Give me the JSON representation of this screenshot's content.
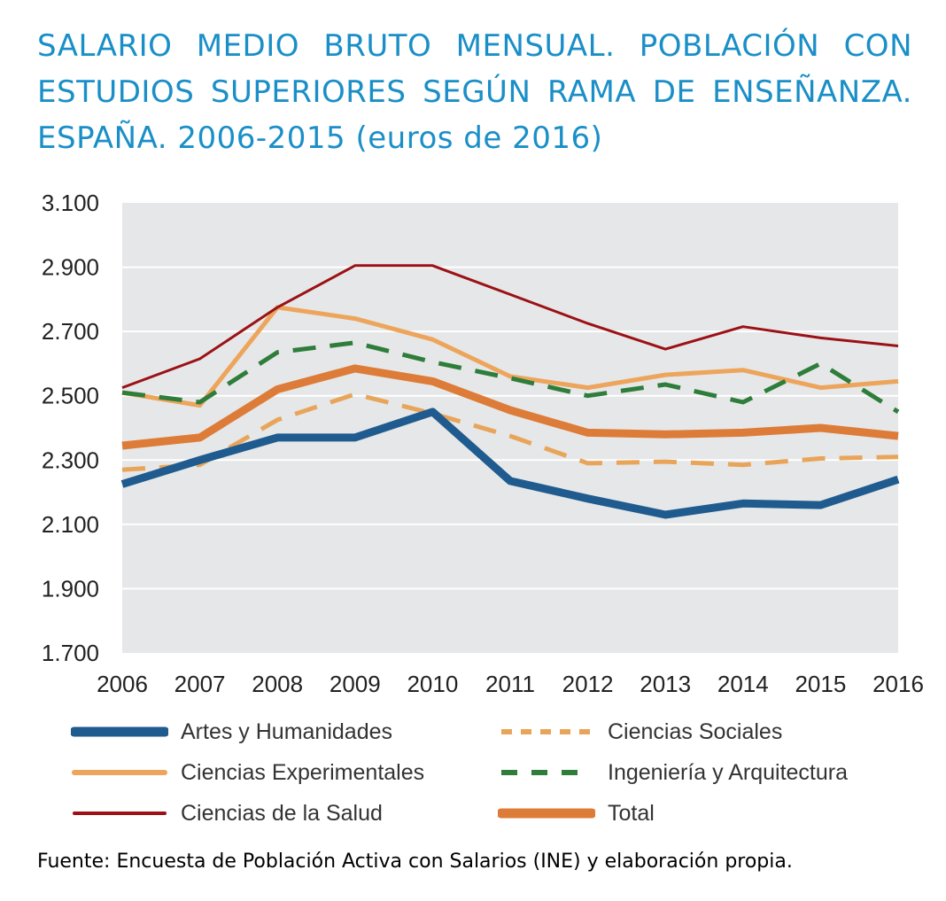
{
  "title": "SALARIO MEDIO BRUTO MENSUAL. POBLACIÓN CON ESTUDIOS SUPERIORES SEGÚN RAMA DE ENSEÑANZA. ESPAÑA. 2006-2015 (euros de 2016)",
  "source": "Fuente: Encuesta de Población Activa con Salarios (INE) y elaboración propia.",
  "chart_data": {
    "type": "line",
    "title": "SALARIO MEDIO BRUTO MENSUAL. POBLACIÓN CON ESTUDIOS SUPERIORES SEGÚN RAMA DE ENSEÑANZA. ESPAÑA. 2006-2015 (euros de 2016)",
    "x": [
      "2006",
      "2007",
      "2008",
      "2009",
      "2010",
      "2011",
      "2012",
      "2013",
      "2014",
      "2015",
      "2016"
    ],
    "ylim": [
      1700,
      3100
    ],
    "yticks": [
      "1.700",
      "1.900",
      "2.100",
      "2.300",
      "2.500",
      "2.700",
      "2.900",
      "3.100"
    ],
    "ytick_values": [
      1700,
      1900,
      2100,
      2300,
      2500,
      2700,
      2900,
      3100
    ],
    "grid": true,
    "legend_position": "bottom",
    "plot_background": "#e6e7e8",
    "series": [
      {
        "name": "Artes y Humanidades",
        "color": "#1f5b8e",
        "dash": "solid",
        "weight": "heavy",
        "values": [
          2225,
          2300,
          2370,
          2370,
          2450,
          2235,
          2180,
          2130,
          2165,
          2160,
          2240
        ]
      },
      {
        "name": "Ciencias Sociales",
        "color": "#e8a55a",
        "dash": "dashed",
        "weight": "medium",
        "values": [
          2270,
          2285,
          2425,
          2505,
          2445,
          2375,
          2290,
          2295,
          2285,
          2305,
          2310
        ]
      },
      {
        "name": "Ciencias Experimentales",
        "color": "#eda55c",
        "dash": "solid",
        "weight": "medium",
        "values": [
          2510,
          2470,
          2775,
          2740,
          2675,
          2560,
          2525,
          2565,
          2580,
          2525,
          2545
        ]
      },
      {
        "name": "Ingeniería y Arquitectura",
        "color": "#2e7d3a",
        "dash": "dashed",
        "weight": "medium",
        "values": [
          2510,
          2480,
          2635,
          2665,
          2605,
          2555,
          2500,
          2535,
          2480,
          2600,
          2450
        ]
      },
      {
        "name": "Ciencias de la Salud",
        "color": "#9b1115",
        "dash": "solid",
        "weight": "thin",
        "values": [
          2525,
          2615,
          2775,
          2905,
          2905,
          2815,
          2725,
          2645,
          2715,
          2680,
          2655
        ]
      },
      {
        "name": "Total",
        "color": "#dd7c38",
        "dash": "solid",
        "weight": "heavy",
        "values": [
          2345,
          2370,
          2520,
          2585,
          2545,
          2455,
          2385,
          2380,
          2385,
          2400,
          2375
        ]
      }
    ]
  }
}
